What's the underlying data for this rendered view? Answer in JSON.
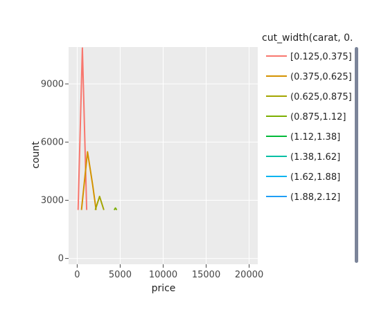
{
  "chart_data": {
    "type": "line",
    "title": "",
    "xlabel": "price",
    "ylabel": "count",
    "xlim": [
      -1000,
      21000
    ],
    "ylim": [
      -300,
      10900
    ],
    "x_ticks": [
      0,
      5000,
      10000,
      15000,
      20000
    ],
    "x_tick_labels": [
      "0",
      "5000",
      "10000",
      "15000",
      "20000"
    ],
    "y_ticks": [
      0,
      3000,
      6000,
      9000
    ],
    "y_tick_labels": [
      "0",
      "3000",
      "6000",
      "9000"
    ],
    "grid": true,
    "legend_title": "cut_width(carat, 0.",
    "legend_position": "right",
    "series": [
      {
        "name": "[0.125,0.375]",
        "color": "#F8766D",
        "points": [
          [
            100,
            2500
          ],
          [
            600,
            10850
          ],
          [
            1100,
            2500
          ]
        ]
      },
      {
        "name": "(0.375,0.625]",
        "color": "#D39200",
        "points": [
          [
            500,
            2500
          ],
          [
            1200,
            5500
          ],
          [
            1800,
            3800
          ],
          [
            2200,
            2500
          ]
        ]
      },
      {
        "name": "(0.625,0.875]",
        "color": "#A3A500",
        "points": [
          [
            2100,
            2500
          ],
          [
            2600,
            3200
          ],
          [
            3100,
            2500
          ]
        ]
      },
      {
        "name": "(0.875,1.12]",
        "color": "#7CAE00",
        "points": [
          [
            4300,
            2500
          ],
          [
            4450,
            2600
          ],
          [
            4600,
            2500
          ]
        ]
      },
      {
        "name": "(1.12,1.38]",
        "color": "#00BA38",
        "points": []
      },
      {
        "name": "(1.38,1.62]",
        "color": "#00BFA4",
        "points": []
      },
      {
        "name": "(1.62,1.88]",
        "color": "#00B4EF",
        "points": []
      },
      {
        "name": "(1.88,2.12]",
        "color": "#1F9EF5",
        "points": []
      }
    ]
  }
}
